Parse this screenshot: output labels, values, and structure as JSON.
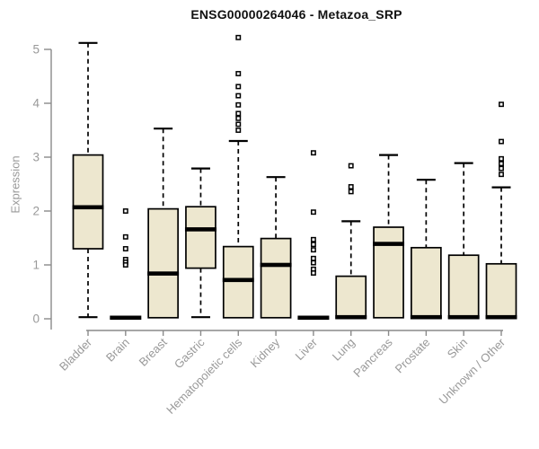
{
  "chart_data": {
    "type": "boxplot",
    "title": "ENSG00000264046 - Metazoa_SRP",
    "ylabel": "Expression",
    "xlabel": "",
    "ylim": [
      0,
      5
    ],
    "yticks": [
      0,
      1,
      2,
      3,
      4,
      5
    ],
    "legend": "none",
    "grid": false,
    "boxes": [
      {
        "category": "Bladder",
        "whisker_low": 0.03,
        "q1": 1.3,
        "median": 2.07,
        "q3": 3.04,
        "whisker_high": 5.12,
        "outliers": []
      },
      {
        "category": "Brain",
        "whisker_low": 0.02,
        "q1": 0.02,
        "median": 0.02,
        "q3": 0.02,
        "whisker_high": 0.02,
        "outliers": [
          2.0,
          1.52,
          1.3,
          1.1,
          1.05,
          1.0
        ]
      },
      {
        "category": "Breast",
        "whisker_low": 0.02,
        "q1": 0.02,
        "median": 0.84,
        "q3": 2.04,
        "whisker_high": 3.53,
        "outliers": []
      },
      {
        "category": "Gastric",
        "whisker_low": 0.03,
        "q1": 0.94,
        "median": 1.66,
        "q3": 2.08,
        "whisker_high": 2.79,
        "outliers": []
      },
      {
        "category": "Hematopoietic cells",
        "whisker_low": 0.02,
        "q1": 0.02,
        "median": 0.72,
        "q3": 1.34,
        "whisker_high": 3.3,
        "outliers": [
          5.22,
          4.55,
          4.31,
          4.14,
          3.97,
          3.81,
          3.72,
          3.61,
          3.5
        ]
      },
      {
        "category": "Kidney",
        "whisker_low": 0.02,
        "q1": 0.02,
        "median": 1.0,
        "q3": 1.49,
        "whisker_high": 2.63,
        "outliers": []
      },
      {
        "category": "Liver",
        "whisker_low": 0.02,
        "q1": 0.02,
        "median": 0.02,
        "q3": 0.02,
        "whisker_high": 0.02,
        "outliers": [
          3.08,
          1.98,
          1.47,
          1.38,
          1.28,
          1.12,
          1.04,
          0.92,
          0.85
        ]
      },
      {
        "category": "Lung",
        "whisker_low": 0.02,
        "q1": 0.02,
        "median": 0.03,
        "q3": 0.79,
        "whisker_high": 1.81,
        "outliers": [
          2.84,
          2.45,
          2.36
        ]
      },
      {
        "category": "Pancreas",
        "whisker_low": 0.02,
        "q1": 0.02,
        "median": 1.39,
        "q3": 1.7,
        "whisker_high": 3.04,
        "outliers": []
      },
      {
        "category": "Prostate",
        "whisker_low": 0.02,
        "q1": 0.02,
        "median": 0.03,
        "q3": 1.32,
        "whisker_high": 2.58,
        "outliers": []
      },
      {
        "category": "Skin",
        "whisker_low": 0.02,
        "q1": 0.02,
        "median": 0.03,
        "q3": 1.18,
        "whisker_high": 2.89,
        "outliers": []
      },
      {
        "category": "Unknown / Other",
        "whisker_low": 0.02,
        "q1": 0.02,
        "median": 0.03,
        "q3": 1.02,
        "whisker_high": 2.44,
        "outliers": [
          3.98,
          3.29,
          2.97,
          2.88,
          2.79,
          2.68
        ]
      }
    ]
  },
  "colors": {
    "box_fill": "#EDE7CF",
    "box_stroke": "#000000",
    "median": "#000000",
    "whisker": "#000000",
    "outlier": "#000000",
    "axis": "#8a8a8a",
    "tick_label": "#999999",
    "title": "#111111",
    "background": "#ffffff"
  }
}
